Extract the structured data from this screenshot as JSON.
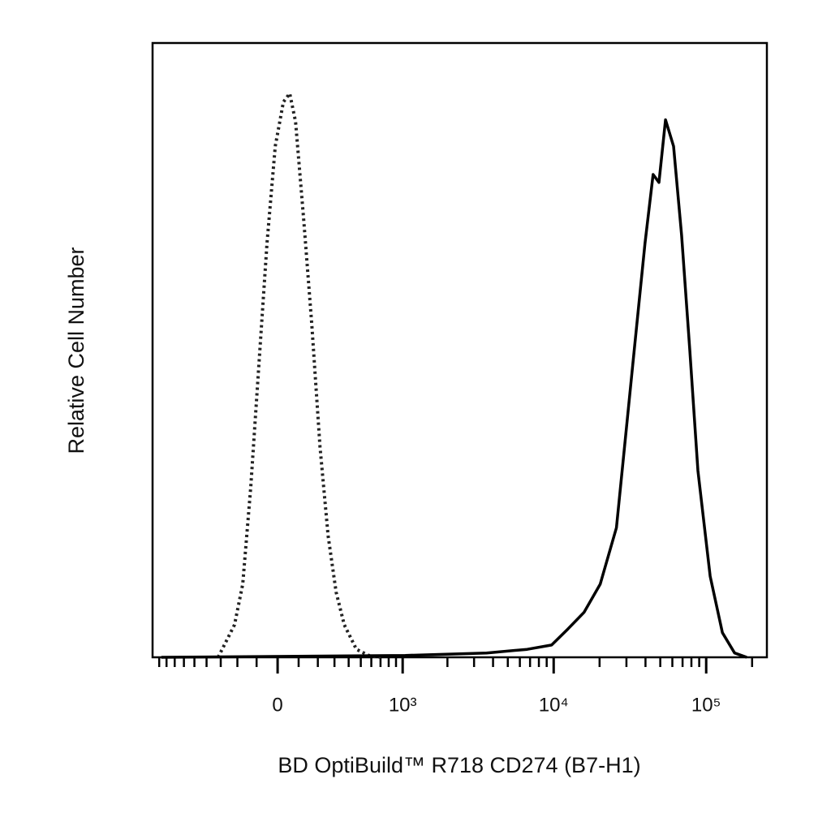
{
  "chart_data": {
    "type": "line",
    "x_label": "BD OptiBuild™ R718 CD274 (B7-H1)",
    "y_label": "Relative Cell Number",
    "xscale": "asinh",
    "linthresh": 310,
    "xlim": [
      -1000,
      250000
    ],
    "ylim": [
      0,
      100
    ],
    "xticks": [
      0,
      {
        "value": 1000,
        "label": "10³"
      },
      {
        "value": 10000,
        "label": "10⁴"
      },
      {
        "value": 100000,
        "label": "10⁵"
      }
    ],
    "xminorticks": [
      -900,
      -800,
      -700,
      -600,
      -500,
      -400,
      -300,
      -200,
      -100,
      100,
      200,
      300,
      400,
      500,
      600,
      700,
      800,
      900,
      2000,
      3000,
      4000,
      5000,
      6000,
      7000,
      8000,
      9000,
      20000,
      30000,
      40000,
      50000,
      60000,
      70000,
      80000,
      90000,
      200000
    ],
    "series": [
      {
        "color": "#222222",
        "linestyle": "dotted",
        "x": [
          -317,
          -216,
          -171,
          -129,
          -89,
          -50,
          -11,
          27,
          57,
          85,
          125,
          167,
          212,
          260,
          311,
          367,
          462,
          574,
          704
        ],
        "values": [
          0,
          5.3,
          11.9,
          27.7,
          47.6,
          67.4,
          83.2,
          90.4,
          91.8,
          87.2,
          71.3,
          54.2,
          34.3,
          19.8,
          10.6,
          5.3,
          1.3,
          0.3,
          0
        ]
      },
      {
        "color": "#000000",
        "linestyle": "solid",
        "x": [
          -870,
          1042,
          3624,
          6700,
          9690,
          12380,
          15800,
          20200,
          25800,
          33000,
          39700,
          44900,
          49000,
          54100,
          61100,
          69000,
          78000,
          88300,
          106200,
          127700,
          153500,
          184500
        ],
        "values": [
          0,
          0.3,
          0.7,
          1.3,
          2.0,
          4.6,
          7.3,
          11.9,
          21.1,
          47.6,
          67.4,
          78.6,
          77.3,
          87.5,
          83.2,
          68.7,
          50.2,
          30.4,
          13.2,
          4.0,
          0.7,
          0
        ]
      }
    ]
  }
}
